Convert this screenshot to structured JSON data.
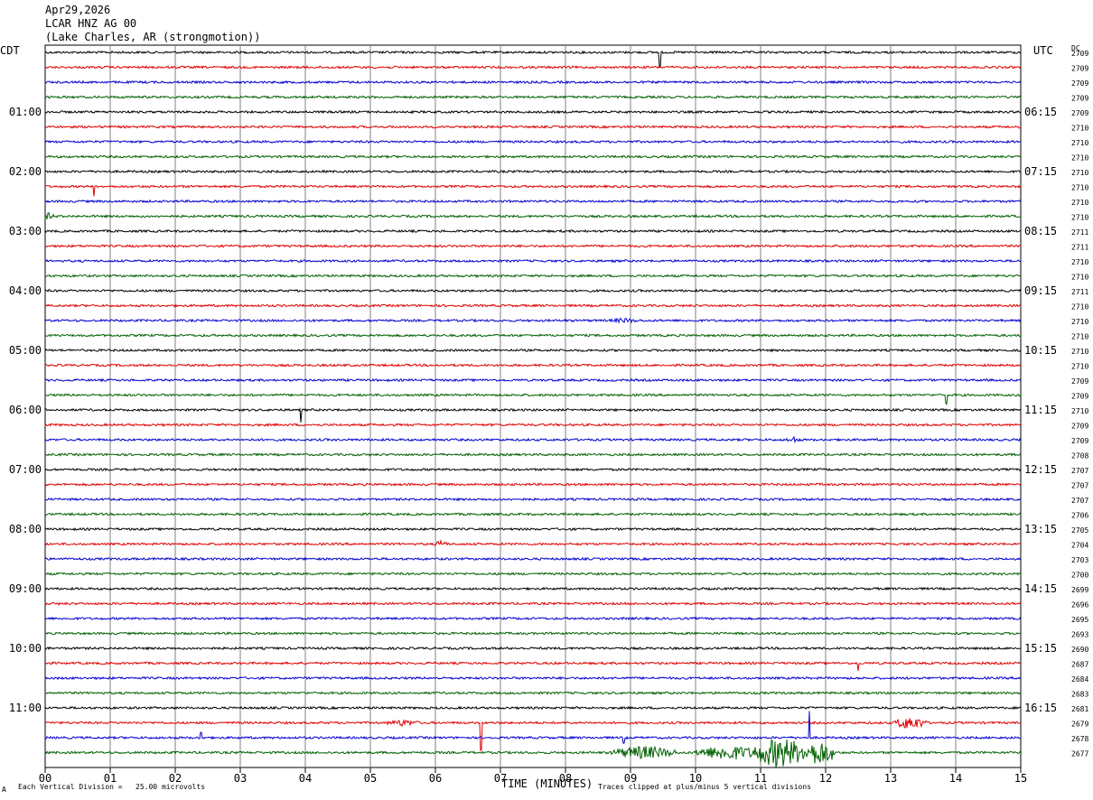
{
  "header": {
    "date": "Apr29,2026",
    "station": "LCAR HNZ AG 00",
    "location": "(Lake Charles, AR (strongmotion))"
  },
  "left_axis_title": "CDT",
  "right_axis_title": "UTC",
  "dc_title": "DC",
  "footer": {
    "scale_text": "Each Vertical Division =   25.00 microvolts",
    "clip_text": "Traces clipped at plus/minus 5 vertical divisions",
    "corner_mark": "A"
  },
  "colors": {
    "trace_cycle": [
      "#000000",
      "#e00000",
      "#0000d0",
      "#006000"
    ],
    "grid": "#808080"
  },
  "chart_data": {
    "type": "line",
    "title": "Apr29,2026 LCAR HNZ AG 00 (Lake Charles, AR (strongmotion))",
    "xlabel": "TIME (MINUTES)",
    "x_ticks": [
      "00",
      "01",
      "02",
      "03",
      "04",
      "05",
      "06",
      "07",
      "08",
      "09",
      "10",
      "11",
      "12",
      "13",
      "14",
      "15"
    ],
    "xlim": [
      0,
      15
    ],
    "left_time_labels": [
      {
        "trace": 4,
        "label": "01:00"
      },
      {
        "trace": 8,
        "label": "02:00"
      },
      {
        "trace": 12,
        "label": "03:00"
      },
      {
        "trace": 16,
        "label": "04:00"
      },
      {
        "trace": 20,
        "label": "05:00"
      },
      {
        "trace": 24,
        "label": "06:00"
      },
      {
        "trace": 28,
        "label": "07:00"
      },
      {
        "trace": 32,
        "label": "08:00"
      },
      {
        "trace": 36,
        "label": "09:00"
      },
      {
        "trace": 40,
        "label": "10:00"
      },
      {
        "trace": 44,
        "label": "11:00"
      }
    ],
    "right_time_labels": [
      {
        "trace": 4,
        "label": "06:15"
      },
      {
        "trace": 8,
        "label": "07:15"
      },
      {
        "trace": 12,
        "label": "08:15"
      },
      {
        "trace": 16,
        "label": "09:15"
      },
      {
        "trace": 20,
        "label": "10:15"
      },
      {
        "trace": 24,
        "label": "11:15"
      },
      {
        "trace": 28,
        "label": "12:15"
      },
      {
        "trace": 32,
        "label": "13:15"
      },
      {
        "trace": 36,
        "label": "14:15"
      },
      {
        "trace": 40,
        "label": "15:15"
      },
      {
        "trace": 44,
        "label": "16:15"
      }
    ],
    "dc_offsets": [
      "2709",
      "2709",
      "2709",
      "2709",
      "2709",
      "2710",
      "2710",
      "2710",
      "2710",
      "2710",
      "2710",
      "2710",
      "2711",
      "2711",
      "2710",
      "2710",
      "2711",
      "2710",
      "2710",
      "2710",
      "2710",
      "2710",
      "2709",
      "2709",
      "2710",
      "2709",
      "2709",
      "2708",
      "2707",
      "2707",
      "2707",
      "2706",
      "2705",
      "2704",
      "2703",
      "2700",
      "2699",
      "2696",
      "2695",
      "2693",
      "2690",
      "2687",
      "2684",
      "2683",
      "2681",
      "2679",
      "2678",
      "2677"
    ],
    "trace_count": 48,
    "minutes_per_trace": 15,
    "events": [
      {
        "trace": 0,
        "minute": 9.45,
        "amp": 16,
        "width": 0.02
      },
      {
        "trace": 9,
        "minute": 0.75,
        "amp": 12,
        "width": 0.02
      },
      {
        "trace": 11,
        "minute": 0.05,
        "amp": 4,
        "width": 0.2
      },
      {
        "trace": 18,
        "minute": 8.9,
        "amp": 3,
        "width": 0.5
      },
      {
        "trace": 23,
        "minute": 13.85,
        "amp": 10,
        "width": 0.02
      },
      {
        "trace": 24,
        "minute": 3.93,
        "amp": 14,
        "width": 0.02
      },
      {
        "trace": 26,
        "minute": 11.5,
        "amp": 4,
        "width": 0.2
      },
      {
        "trace": 33,
        "minute": 6.1,
        "amp": 6,
        "width": 0.15
      },
      {
        "trace": 41,
        "minute": 12.5,
        "amp": 8,
        "width": 0.03
      },
      {
        "trace": 45,
        "minute": 6.7,
        "amp": 30,
        "width": 0.02
      },
      {
        "trace": 45,
        "minute": 5.5,
        "amp": 4,
        "width": 0.5
      },
      {
        "trace": 45,
        "minute": 13.3,
        "amp": 8,
        "width": 0.5
      },
      {
        "trace": 46,
        "minute": 11.75,
        "amp": 30,
        "width": 0.02
      },
      {
        "trace": 46,
        "minute": 2.4,
        "amp": 6,
        "width": 0.03
      },
      {
        "trace": 46,
        "minute": 8.9,
        "amp": 7,
        "width": 0.03
      },
      {
        "trace": 47,
        "minute": 9.2,
        "amp": 8,
        "width": 1.0
      },
      {
        "trace": 47,
        "minute": 10.5,
        "amp": 9,
        "width": 1.0
      },
      {
        "trace": 47,
        "minute": 11.3,
        "amp": 18,
        "width": 0.9
      },
      {
        "trace": 47,
        "minute": 11.9,
        "amp": 15,
        "width": 0.5
      }
    ]
  }
}
